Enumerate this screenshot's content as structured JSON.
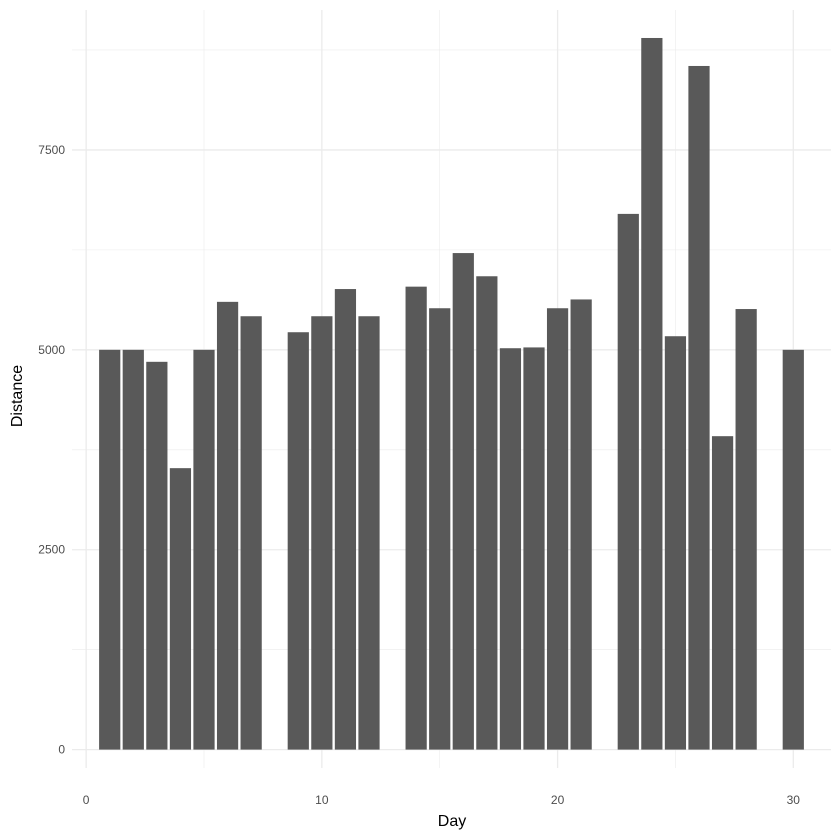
{
  "chart_data": {
    "type": "bar",
    "xlabel": "Day",
    "ylabel": "Distance",
    "xlim": [
      -0.6,
      31.6
    ],
    "ylim": [
      -230,
      9250
    ],
    "x_ticks": [
      0,
      10,
      20,
      30
    ],
    "x_minor_ticks": [
      5,
      15,
      25
    ],
    "y_ticks": [
      0,
      2500,
      5000,
      7500
    ],
    "y_minor_ticks": [
      1250,
      3750,
      6250,
      8750
    ],
    "grid": true,
    "bar_color": "#595959",
    "grid_color": "#ebebeb",
    "bars": [
      {
        "day": 1,
        "distance": 5000
      },
      {
        "day": 2,
        "distance": 5000
      },
      {
        "day": 3,
        "distance": 4850
      },
      {
        "day": 4,
        "distance": 3520
      },
      {
        "day": 5,
        "distance": 5000
      },
      {
        "day": 6,
        "distance": 5600
      },
      {
        "day": 7,
        "distance": 5420
      },
      {
        "day": 9,
        "distance": 5220
      },
      {
        "day": 10,
        "distance": 5420
      },
      {
        "day": 11,
        "distance": 5760
      },
      {
        "day": 12,
        "distance": 5420
      },
      {
        "day": 14,
        "distance": 5790
      },
      {
        "day": 15,
        "distance": 5520
      },
      {
        "day": 16,
        "distance": 6210
      },
      {
        "day": 17,
        "distance": 5920
      },
      {
        "day": 18,
        "distance": 5020
      },
      {
        "day": 19,
        "distance": 5030
      },
      {
        "day": 20,
        "distance": 5520
      },
      {
        "day": 21,
        "distance": 5630
      },
      {
        "day": 23,
        "distance": 6700
      },
      {
        "day": 24,
        "distance": 8900
      },
      {
        "day": 25,
        "distance": 5170
      },
      {
        "day": 26,
        "distance": 8550
      },
      {
        "day": 27,
        "distance": 3920
      },
      {
        "day": 28,
        "distance": 5510
      },
      {
        "day": 30,
        "distance": 5000
      }
    ]
  }
}
